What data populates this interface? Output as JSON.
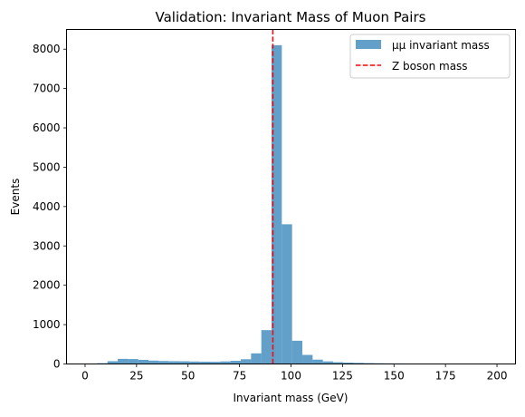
{
  "chart_data": {
    "type": "bar",
    "title": "Validation: Invariant Mass of Muon Pairs",
    "xlabel": "Invariant mass (GeV)",
    "ylabel": "Events",
    "xlim": [
      -9,
      209
    ],
    "ylim": [
      0,
      8500
    ],
    "xticks": [
      0,
      25,
      50,
      75,
      100,
      125,
      150,
      175,
      200
    ],
    "yticks": [
      0,
      1000,
      2000,
      3000,
      4000,
      5000,
      6000,
      7000,
      8000
    ],
    "grid": false,
    "legend_position": "top-right",
    "bin_width": 4.98,
    "bins": [
      {
        "x0": 5.9,
        "y": 20
      },
      {
        "x0": 10.88,
        "y": 70
      },
      {
        "x0": 15.86,
        "y": 130
      },
      {
        "x0": 20.84,
        "y": 125
      },
      {
        "x0": 25.82,
        "y": 105
      },
      {
        "x0": 30.8,
        "y": 85
      },
      {
        "x0": 35.78,
        "y": 75
      },
      {
        "x0": 40.76,
        "y": 70
      },
      {
        "x0": 45.74,
        "y": 68
      },
      {
        "x0": 50.72,
        "y": 62
      },
      {
        "x0": 55.7,
        "y": 58
      },
      {
        "x0": 60.68,
        "y": 55
      },
      {
        "x0": 65.66,
        "y": 65
      },
      {
        "x0": 70.64,
        "y": 80
      },
      {
        "x0": 75.62,
        "y": 120
      },
      {
        "x0": 80.6,
        "y": 270
      },
      {
        "x0": 85.58,
        "y": 860
      },
      {
        "x0": 90.56,
        "y": 8100
      },
      {
        "x0": 95.54,
        "y": 3550
      },
      {
        "x0": 100.52,
        "y": 590
      },
      {
        "x0": 105.5,
        "y": 230
      },
      {
        "x0": 110.48,
        "y": 110
      },
      {
        "x0": 115.46,
        "y": 65
      },
      {
        "x0": 120.44,
        "y": 45
      },
      {
        "x0": 125.42,
        "y": 35
      },
      {
        "x0": 130.4,
        "y": 28
      },
      {
        "x0": 135.38,
        "y": 22
      },
      {
        "x0": 140.36,
        "y": 18
      },
      {
        "x0": 145.34,
        "y": 15
      },
      {
        "x0": 150.32,
        "y": 13
      },
      {
        "x0": 155.3,
        "y": 11
      },
      {
        "x0": 160.28,
        "y": 10
      },
      {
        "x0": 165.26,
        "y": 9
      },
      {
        "x0": 170.24,
        "y": 8
      },
      {
        "x0": 175.22,
        "y": 7
      },
      {
        "x0": 180.2,
        "y": 6
      },
      {
        "x0": 185.18,
        "y": 6
      },
      {
        "x0": 190.16,
        "y": 5
      },
      {
        "x0": 195.14,
        "y": 5
      }
    ],
    "vline": {
      "x": 91.19,
      "color": "#ff0000",
      "style": "dashed"
    },
    "bar_color": "#1f77b4",
    "bar_opacity": 0.7,
    "legend": [
      {
        "label": "μμ invariant mass",
        "kind": "patch",
        "color": "#1f77b4"
      },
      {
        "label": "Z boson mass",
        "kind": "dashed-line",
        "color": "#ff0000"
      }
    ]
  }
}
